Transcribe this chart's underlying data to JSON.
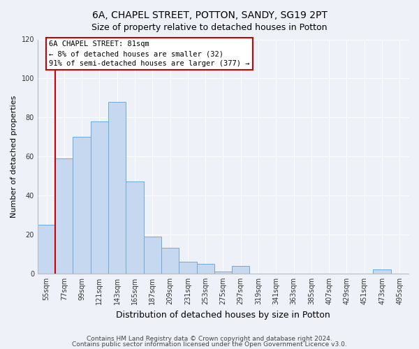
{
  "title": "6A, CHAPEL STREET, POTTON, SANDY, SG19 2PT",
  "subtitle": "Size of property relative to detached houses in Potton",
  "xlabel": "Distribution of detached houses by size in Potton",
  "ylabel": "Number of detached properties",
  "bin_labels": [
    "55sqm",
    "77sqm",
    "99sqm",
    "121sqm",
    "143sqm",
    "165sqm",
    "187sqm",
    "209sqm",
    "231sqm",
    "253sqm",
    "275sqm",
    "297sqm",
    "319sqm",
    "341sqm",
    "363sqm",
    "385sqm",
    "407sqm",
    "429sqm",
    "451sqm",
    "473sqm",
    "495sqm"
  ],
  "bar_heights": [
    25,
    59,
    70,
    78,
    88,
    47,
    19,
    13,
    6,
    5,
    1,
    4,
    0,
    0,
    0,
    0,
    0,
    0,
    0,
    2,
    0
  ],
  "bar_color": "#c5d8f0",
  "bar_edge_color": "#6aabe0",
  "ylim": [
    0,
    120
  ],
  "yticks": [
    0,
    20,
    40,
    60,
    80,
    100,
    120
  ],
  "vline_x": 0.5,
  "vline_color": "#cc0000",
  "annotation_title": "6A CHAPEL STREET: 81sqm",
  "annotation_line1": "← 8% of detached houses are smaller (32)",
  "annotation_line2": "91% of semi-detached houses are larger (377) →",
  "annotation_box_color": "#ffffff",
  "annotation_box_edge": "#cc0000",
  "footer1": "Contains HM Land Registry data © Crown copyright and database right 2024.",
  "footer2": "Contains public sector information licensed under the Open Government Licence v3.0.",
  "bg_color": "#eef2f8",
  "plot_bg_color": "#eef2f8",
  "grid_color": "#ffffff",
  "title_fontsize": 10,
  "subtitle_fontsize": 9,
  "xlabel_fontsize": 9,
  "ylabel_fontsize": 8,
  "tick_fontsize": 7,
  "annotation_fontsize": 7.5,
  "footer_fontsize": 6.5
}
